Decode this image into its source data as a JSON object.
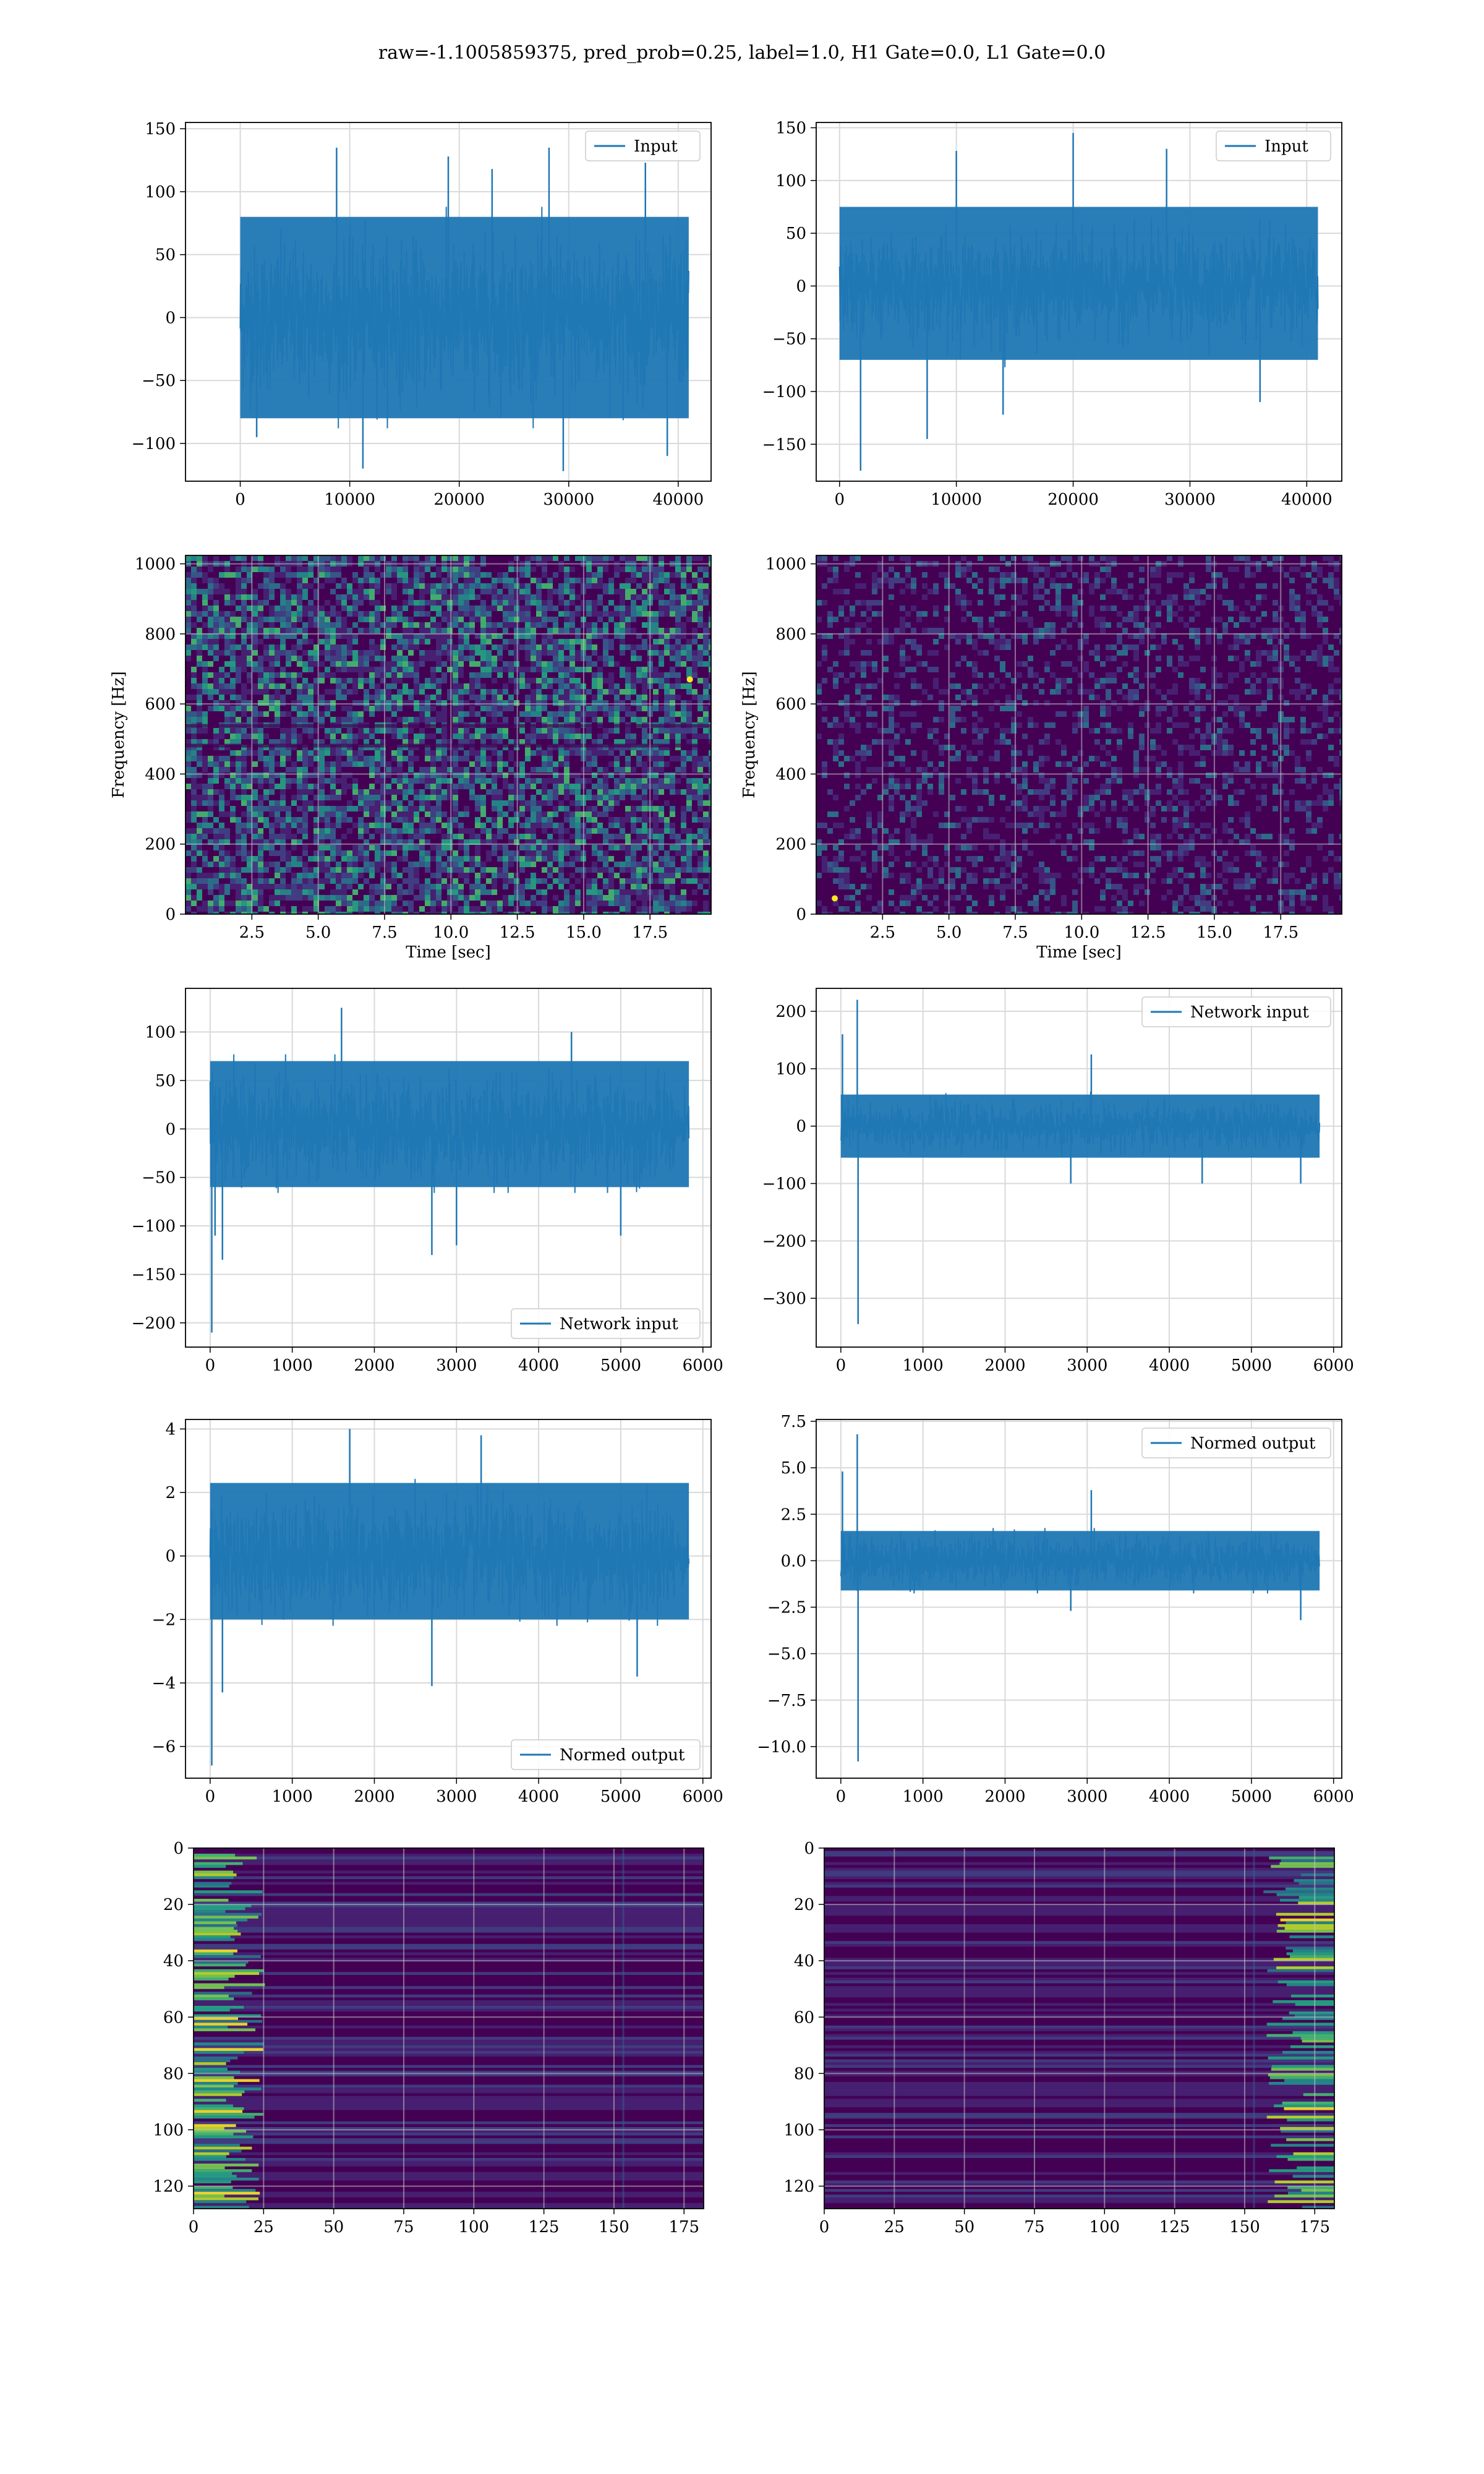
{
  "suptitle": "raw=-1.1005859375, pred_prob=0.25, label=1.0, H1 Gate=0.0, L1 Gate=0.0",
  "colors": {
    "line": "#1f77b4",
    "grid": "#d9d9d9",
    "spec_bg": "#440154",
    "viridis": [
      "#440154",
      "#482475",
      "#414487",
      "#355f8d",
      "#2a788e",
      "#21918c",
      "#22a884",
      "#44bf70",
      "#7ad151",
      "#bddf26",
      "#fde725"
    ]
  },
  "chart_data": [
    {
      "id": "ts_h1_input",
      "type": "line",
      "legend": "Input",
      "legend_loc": "upper right",
      "xlim": [
        -5000,
        43000
      ],
      "ylim": [
        -130,
        155
      ],
      "xticks": [
        0,
        10000,
        20000,
        30000,
        40000
      ],
      "yticks": [
        -100,
        -50,
        0,
        50,
        100,
        150
      ],
      "x_range": [
        0,
        40960
      ],
      "band": [
        -80,
        80
      ],
      "noise_sigma": 28,
      "spikes": [
        [
          1500,
          -95
        ],
        [
          8800,
          135
        ],
        [
          11200,
          -120
        ],
        [
          19000,
          128
        ],
        [
          23000,
          118
        ],
        [
          28200,
          135
        ],
        [
          29500,
          -122
        ],
        [
          37000,
          123
        ],
        [
          39000,
          -110
        ]
      ],
      "grid": true
    },
    {
      "id": "ts_l1_input",
      "type": "line",
      "legend": "Input",
      "legend_loc": "upper right",
      "xlim": [
        -2000,
        43000
      ],
      "ylim": [
        -185,
        155
      ],
      "xticks": [
        0,
        10000,
        20000,
        30000,
        40000
      ],
      "yticks": [
        -150,
        -100,
        -50,
        0,
        50,
        100,
        150
      ],
      "x_range": [
        0,
        40960
      ],
      "band": [
        -70,
        75
      ],
      "noise_sigma": 22,
      "spikes": [
        [
          1800,
          -175
        ],
        [
          7500,
          -145
        ],
        [
          10000,
          128
        ],
        [
          14000,
          -122
        ],
        [
          20000,
          145
        ],
        [
          28000,
          130
        ],
        [
          36000,
          -110
        ]
      ],
      "grid": true
    },
    {
      "id": "spec_h1",
      "type": "heatmap",
      "xlabel": "Time [sec]",
      "ylabel": "Frequency [Hz]",
      "xlim": [
        0,
        19.8
      ],
      "ylim": [
        0,
        1024
      ],
      "xticks": [
        2.5,
        5.0,
        7.5,
        10.0,
        12.5,
        15.0,
        17.5
      ],
      "yticks": [
        0,
        200,
        400,
        600,
        800,
        1000
      ],
      "intensity": "high",
      "hot_spots": [
        [
          19.0,
          670
        ]
      ],
      "grid": true
    },
    {
      "id": "spec_l1",
      "type": "heatmap",
      "xlabel": "Time [sec]",
      "ylabel": "Frequency [Hz]",
      "xlim": [
        0,
        19.8
      ],
      "ylim": [
        0,
        1024
      ],
      "xticks": [
        2.5,
        5.0,
        7.5,
        10.0,
        12.5,
        15.0,
        17.5
      ],
      "yticks": [
        0,
        200,
        400,
        600,
        800,
        1000
      ],
      "intensity": "low",
      "hot_spots": [
        [
          0.7,
          45
        ]
      ],
      "grid": true
    },
    {
      "id": "net_h1",
      "type": "line",
      "legend": "Network input",
      "legend_loc": "lower right",
      "xlim": [
        -300,
        6100
      ],
      "ylim": [
        -225,
        145
      ],
      "xticks": [
        0,
        1000,
        2000,
        3000,
        4000,
        5000,
        6000
      ],
      "yticks": [
        -200,
        -150,
        -100,
        -50,
        0,
        50,
        100
      ],
      "x_range": [
        0,
        5830
      ],
      "band": [
        -60,
        70
      ],
      "noise_sigma": 24,
      "taper_end": true,
      "spikes": [
        [
          20,
          -210
        ],
        [
          60,
          -110
        ],
        [
          150,
          -135
        ],
        [
          1600,
          125
        ],
        [
          2700,
          -130
        ],
        [
          3000,
          -120
        ],
        [
          4400,
          100
        ],
        [
          5000,
          -110
        ]
      ],
      "grid": true
    },
    {
      "id": "net_l1",
      "type": "line",
      "legend": "Network input",
      "legend_loc": "upper right",
      "xlim": [
        -300,
        6100
      ],
      "ylim": [
        -385,
        240
      ],
      "xticks": [
        0,
        1000,
        2000,
        3000,
        4000,
        5000,
        6000
      ],
      "yticks": [
        -300,
        -200,
        -100,
        0,
        100,
        200
      ],
      "x_range": [
        0,
        5830
      ],
      "band": [
        -55,
        55
      ],
      "noise_sigma": 18,
      "taper_end": true,
      "spikes": [
        [
          20,
          160
        ],
        [
          200,
          220
        ],
        [
          210,
          -345
        ],
        [
          2800,
          -100
        ],
        [
          3050,
          125
        ],
        [
          4400,
          -100
        ],
        [
          5600,
          -100
        ]
      ],
      "grid": true
    },
    {
      "id": "norm_h1",
      "type": "line",
      "legend": "Normed output",
      "legend_loc": "lower right",
      "xlim": [
        -300,
        6100
      ],
      "ylim": [
        -7.0,
        4.3
      ],
      "xticks": [
        0,
        1000,
        2000,
        3000,
        4000,
        5000,
        6000
      ],
      "yticks": [
        -6,
        -4,
        -2,
        0,
        2,
        4
      ],
      "x_range": [
        0,
        5830
      ],
      "band": [
        -2.0,
        2.3
      ],
      "noise_sigma": 0.8,
      "taper_end": true,
      "spikes": [
        [
          20,
          -6.6
        ],
        [
          150,
          -4.3
        ],
        [
          1700,
          4.0
        ],
        [
          2700,
          -4.1
        ],
        [
          3300,
          3.8
        ],
        [
          5200,
          -3.8
        ]
      ],
      "grid": true
    },
    {
      "id": "norm_l1",
      "type": "line",
      "legend": "Normed output",
      "legend_loc": "upper right",
      "xlim": [
        -300,
        6100
      ],
      "ylim": [
        -11.7,
        7.6
      ],
      "xticks": [
        0,
        1000,
        2000,
        3000,
        4000,
        5000,
        6000
      ],
      "yticks": [
        -10.0,
        -7.5,
        -5.0,
        -2.5,
        0.0,
        2.5,
        5.0,
        7.5
      ],
      "x_range": [
        0,
        5830
      ],
      "band": [
        -1.6,
        1.6
      ],
      "noise_sigma": 0.6,
      "taper_end": true,
      "spikes": [
        [
          20,
          4.8
        ],
        [
          200,
          6.8
        ],
        [
          210,
          -10.8
        ],
        [
          2800,
          -2.7
        ],
        [
          3050,
          3.8
        ],
        [
          5600,
          -3.2
        ]
      ],
      "grid": true
    },
    {
      "id": "feat_h1",
      "type": "heatmap",
      "xlim": [
        0,
        182
      ],
      "ylim": [
        128,
        0
      ],
      "xticks": [
        0,
        25,
        50,
        75,
        100,
        125,
        150,
        175
      ],
      "yticks": [
        0,
        20,
        40,
        60,
        80,
        100,
        120
      ],
      "bright_side": "left",
      "grid": true
    },
    {
      "id": "feat_l1",
      "type": "heatmap",
      "xlim": [
        0,
        182
      ],
      "ylim": [
        128,
        0
      ],
      "xticks": [
        0,
        25,
        50,
        75,
        100,
        125,
        150,
        175
      ],
      "yticks": [
        0,
        20,
        40,
        60,
        80,
        100,
        120
      ],
      "bright_side": "right",
      "grid": true
    }
  ]
}
